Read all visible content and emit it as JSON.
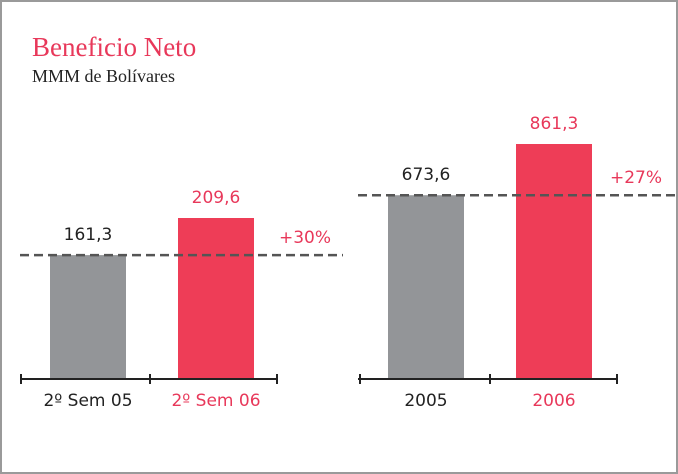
{
  "header": {
    "title": "Beneficio Neto",
    "subtitle": "MMM de Bolívares"
  },
  "chart_data": [
    {
      "type": "bar",
      "categories": [
        "2º Sem 05",
        "2º Sem 06"
      ],
      "values": [
        161.3,
        209.6
      ],
      "value_labels": [
        "161,3",
        "209,6"
      ],
      "colors": [
        "#939598",
        "#ee3d57"
      ],
      "label_colors": [
        "#222222",
        "#e8385a"
      ],
      "annotation": "+30%"
    },
    {
      "type": "bar",
      "categories": [
        "2005",
        "2006"
      ],
      "values": [
        673.6,
        861.3
      ],
      "value_labels": [
        "673,6",
        "861,3"
      ],
      "colors": [
        "#939598",
        "#ee3d57"
      ],
      "label_colors": [
        "#222222",
        "#e8385a"
      ],
      "annotation": "+27%"
    }
  ]
}
